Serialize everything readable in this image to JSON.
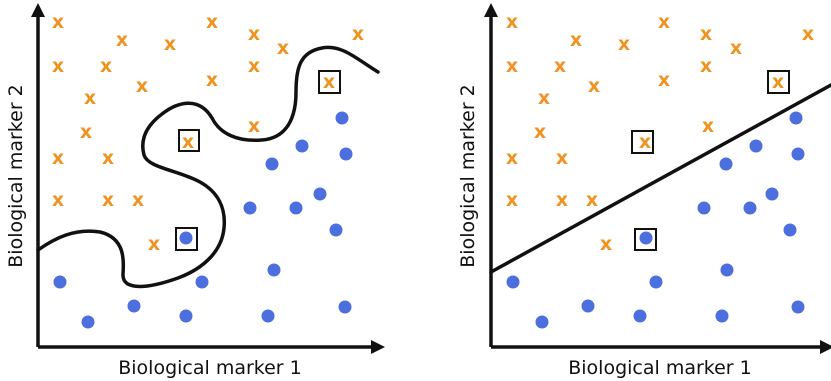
{
  "panels": [
    {
      "id": "left",
      "boundary_type": "nonlinear",
      "xlabel": "Biological marker 1",
      "ylabel": "Biological marker 2",
      "marker_char": "x",
      "colors": {
        "x_class": "#ef9424",
        "dot_class": "#4c6fdd",
        "axes": "#111111"
      }
    },
    {
      "id": "right",
      "boundary_type": "linear",
      "xlabel": "Biological marker 1",
      "ylabel": "Biological marker 2",
      "marker_char": "x",
      "colors": {
        "x_class": "#ef9424",
        "dot_class": "#4c6fdd",
        "axes": "#111111"
      }
    }
  ]
}
